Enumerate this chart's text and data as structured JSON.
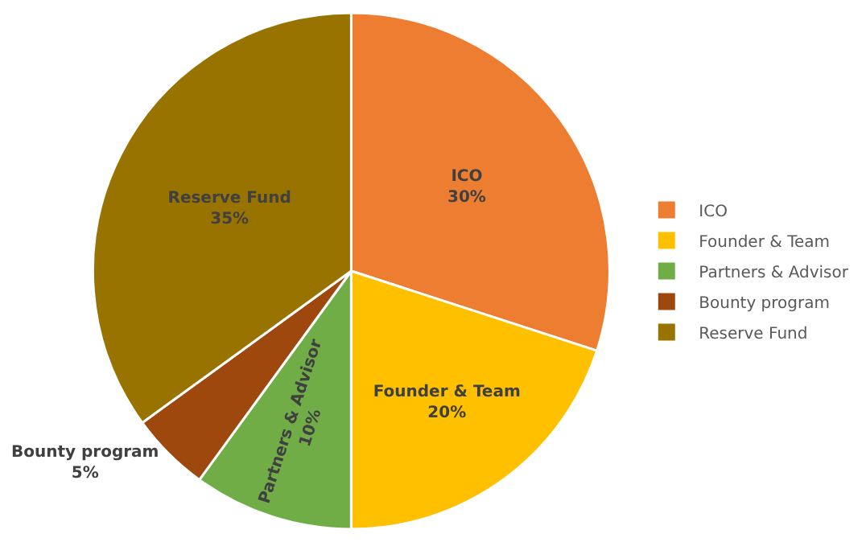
{
  "chart_data": {
    "type": "pie",
    "categories": [
      "ICO",
      "Founder & Team",
      "Partners & Advisor",
      "Bounty program",
      "Reserve Fund"
    ],
    "values": [
      30,
      20,
      10,
      5,
      35
    ],
    "value_labels": [
      "30%",
      "20%",
      "10%",
      "5%",
      "35%"
    ],
    "colors": [
      "#ed7d31",
      "#ffc000",
      "#70ad47",
      "#9e480e",
      "#997300"
    ],
    "legend": "right"
  }
}
